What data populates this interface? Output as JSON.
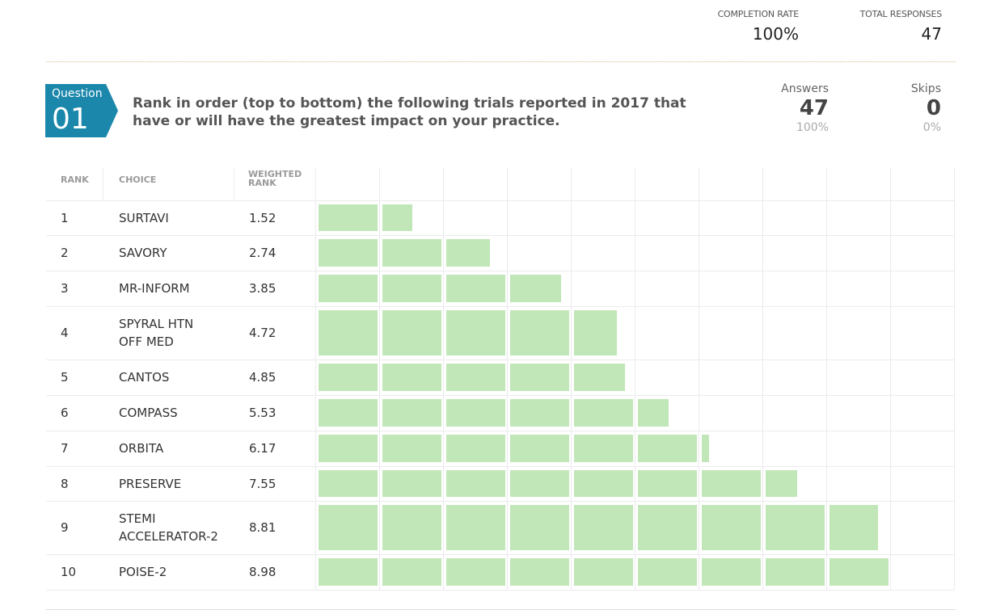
{
  "header": {
    "completion_rate_label": "COMPLETION RATE",
    "completion_rate_value": "100%",
    "total_responses_label": "TOTAL RESPONSES",
    "total_responses_value": "47"
  },
  "question": {
    "badge_label": "Question",
    "badge_number": "01",
    "badge_color": "#1a87ab",
    "text": "Rank in order (top to bottom) the following trials reported in 2017 that have or will have the greatest impact on your practice.",
    "answers_label": "Answers",
    "answers_count": "47",
    "answers_pct": "100%",
    "skips_label": "Skips",
    "skips_count": "0",
    "skips_pct": "0%"
  },
  "chart_data": {
    "type": "bar",
    "orientation": "horizontal",
    "columns": [
      "RANK",
      "CHOICE",
      "WEIGHTED RANK"
    ],
    "categories": [
      "SURTAVI",
      "SAVORY",
      "MR-INFORM",
      "SPYRAL HTN OFF MED",
      "CANTOS",
      "COMPASS",
      "ORBITA",
      "PRESERVE",
      "STEMI ACCELERATOR-2",
      "POISE-2"
    ],
    "rows": [
      {
        "rank": "1",
        "choice": [
          "SURTAVI"
        ],
        "weighted": 1.52
      },
      {
        "rank": "2",
        "choice": [
          "SAVORY"
        ],
        "weighted": 2.74
      },
      {
        "rank": "3",
        "choice": [
          "MR-INFORM"
        ],
        "weighted": 3.85
      },
      {
        "rank": "4",
        "choice": [
          "SPYRAL HTN",
          "OFF MED"
        ],
        "weighted": 4.72
      },
      {
        "rank": "5",
        "choice": [
          "CANTOS"
        ],
        "weighted": 4.85
      },
      {
        "rank": "6",
        "choice": [
          "COMPASS"
        ],
        "weighted": 5.53
      },
      {
        "rank": "7",
        "choice": [
          "ORBITA"
        ],
        "weighted": 6.17
      },
      {
        "rank": "8",
        "choice": [
          "PRESERVE"
        ],
        "weighted": 7.55
      },
      {
        "rank": "9",
        "choice": [
          "STEMI",
          "ACCELERATOR-2"
        ],
        "weighted": 8.81
      },
      {
        "rank": "10",
        "choice": [
          "POISE-2"
        ],
        "weighted": 8.98
      }
    ],
    "xlim": [
      0,
      10
    ],
    "bar_color": "#c1e6b8",
    "grid": true
  }
}
